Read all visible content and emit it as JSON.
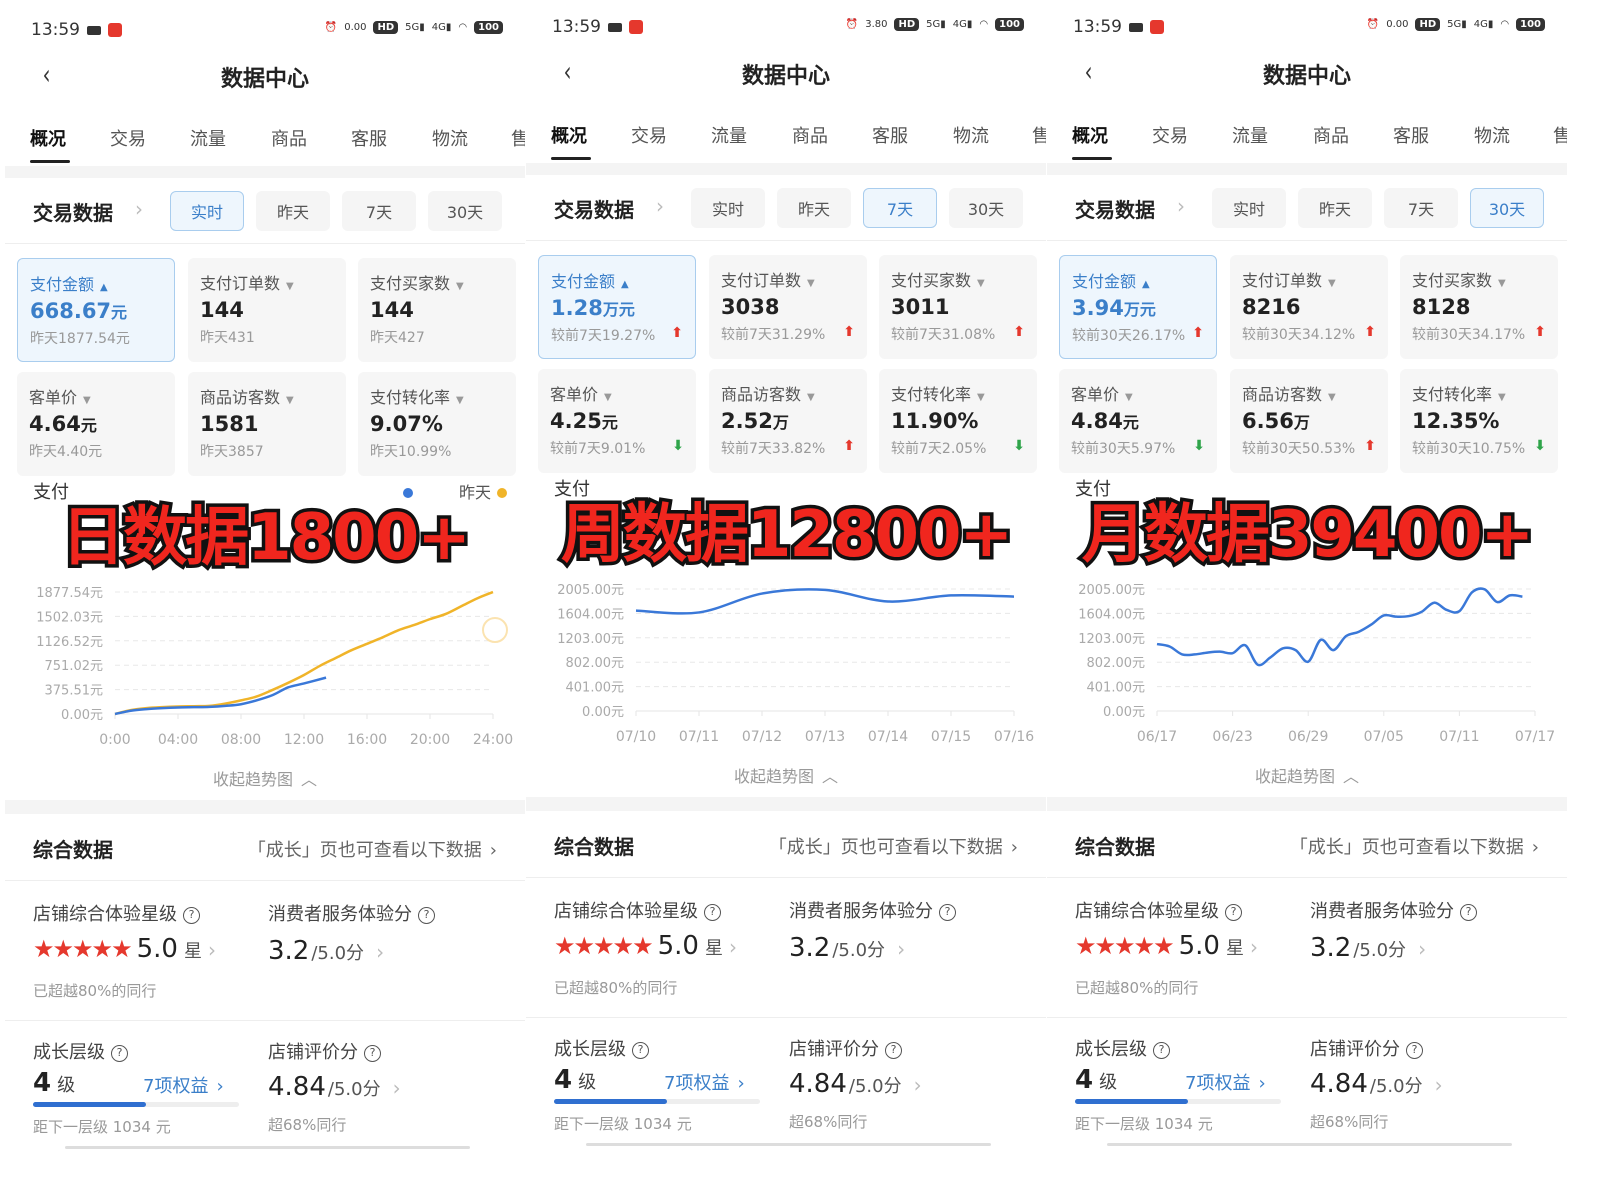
{
  "common": {
    "time": "13:59",
    "title": "数据中心",
    "tabs": [
      "概况",
      "交易",
      "流量",
      "商品",
      "客服",
      "物流",
      "售"
    ],
    "section_title": "交易数据",
    "ranges": [
      "实时",
      "昨天",
      "7天",
      "30天"
    ],
    "collapse_label": "收起趋势图",
    "composite": {
      "title": "综合数据",
      "link": "「成长」页也可查看以下数据",
      "star_label": "店铺综合体验星级",
      "star_value": "5.0",
      "star_unit": "星",
      "star_rating": 5,
      "star_sub": "已超越80%的同行",
      "service_label": "消费者服务体验分",
      "service_value": "3.2",
      "service_unit": "/5.0分",
      "level_label": "成长层级",
      "level_value": "4",
      "level_unit": "级",
      "level_link": "7项权益",
      "level_progress": 0.55,
      "level_sub": "距下一层级 1034 元",
      "review_label": "店铺评价分",
      "review_value": "4.84",
      "review_unit": "/5.0分",
      "review_sub": "超68%同行"
    },
    "colors": {
      "accent": "#3b7fc9",
      "up": "#e5382d",
      "down": "#2fa44a",
      "today": "#3a78d8",
      "yesterday": "#f0b429",
      "overlay": "#f0261e"
    }
  },
  "panels": [
    {
      "net_speed": "0.00",
      "active_range": 0,
      "overlay": "日数据1800+",
      "chart_title": "支付",
      "legend": "昨天",
      "metrics": [
        {
          "label": "支付金额",
          "value": "668.67",
          "unit": "元",
          "sub": "昨天1877.54元",
          "trend": "",
          "selected": true
        },
        {
          "label": "支付订单数",
          "value": "144",
          "unit": "",
          "sub": "昨天431",
          "trend": ""
        },
        {
          "label": "支付买家数",
          "value": "144",
          "unit": "",
          "sub": "昨天427",
          "trend": ""
        },
        {
          "label": "客单价",
          "value": "4.64",
          "unit": "元",
          "sub": "昨天4.40元",
          "trend": ""
        },
        {
          "label": "商品访客数",
          "value": "1581",
          "unit": "",
          "sub": "昨天3857",
          "trend": ""
        },
        {
          "label": "支付转化率",
          "value": "9.07%",
          "unit": "",
          "sub": "昨天10.99%",
          "trend": ""
        }
      ]
    },
    {
      "net_speed": "3.80",
      "active_range": 2,
      "overlay": "周数据12800+",
      "chart_title": "支付",
      "legend": "",
      "metrics": [
        {
          "label": "支付金额",
          "value": "1.28",
          "unit": "万元",
          "sub": "较前7天19.27%",
          "trend": "up",
          "selected": true
        },
        {
          "label": "支付订单数",
          "value": "3038",
          "unit": "",
          "sub": "较前7天31.29%",
          "trend": "up"
        },
        {
          "label": "支付买家数",
          "value": "3011",
          "unit": "",
          "sub": "较前7天31.08%",
          "trend": "up"
        },
        {
          "label": "客单价",
          "value": "4.25",
          "unit": "元",
          "sub": "较前7天9.01%",
          "trend": "down"
        },
        {
          "label": "商品访客数",
          "value": "2.52",
          "unit": "万",
          "sub": "较前7天33.82%",
          "trend": "up"
        },
        {
          "label": "支付转化率",
          "value": "11.90%",
          "unit": "",
          "sub": "较前7天2.05%",
          "trend": "down"
        }
      ]
    },
    {
      "net_speed": "0.00",
      "active_range": 3,
      "overlay": "月数据39400+",
      "chart_title": "支付",
      "legend": "",
      "metrics": [
        {
          "label": "支付金额",
          "value": "3.94",
          "unit": "万元",
          "sub": "较前30天26.17%",
          "trend": "up",
          "selected": true
        },
        {
          "label": "支付订单数",
          "value": "8216",
          "unit": "",
          "sub": "较前30天34.12%",
          "trend": "up"
        },
        {
          "label": "支付买家数",
          "value": "8128",
          "unit": "",
          "sub": "较前30天34.17%",
          "trend": "up"
        },
        {
          "label": "客单价",
          "value": "4.84",
          "unit": "元",
          "sub": "较前30天5.97%",
          "trend": "down"
        },
        {
          "label": "商品访客数",
          "value": "6.56",
          "unit": "万",
          "sub": "较前30天50.53%",
          "trend": "up"
        },
        {
          "label": "支付转化率",
          "value": "12.35%",
          "unit": "",
          "sub": "较前30天10.75%",
          "trend": "down"
        }
      ]
    }
  ],
  "chart_data": [
    {
      "type": "line",
      "grid": true,
      "yticks": [
        "0.00元",
        "375.51元",
        "751.02元",
        "1126.52元",
        "1502.03元",
        "1877.54元"
      ],
      "ylim": [
        0,
        1877.54
      ],
      "xticks": [
        "0:00",
        "04:00",
        "08:00",
        "12:00",
        "16:00",
        "20:00",
        "24:00"
      ],
      "xlim": [
        0,
        24
      ],
      "series": [
        {
          "name": "昨天",
          "color": "#f0b429",
          "x": [
            0,
            1,
            2,
            3,
            4,
            5,
            6,
            7,
            8,
            9,
            10,
            11,
            12,
            13,
            14,
            15,
            16,
            17,
            18,
            19,
            20,
            21,
            22,
            23,
            24
          ],
          "y": [
            0,
            60,
            90,
            105,
            115,
            120,
            125,
            160,
            210,
            270,
            370,
            480,
            600,
            740,
            860,
            980,
            1080,
            1180,
            1290,
            1370,
            1460,
            1540,
            1660,
            1780,
            1877
          ]
        },
        {
          "color": "#3a78d8",
          "x": [
            0,
            1,
            2,
            3,
            4,
            5,
            6,
            7,
            8,
            9,
            10,
            11,
            12,
            13.4
          ],
          "y": [
            0,
            50,
            75,
            90,
            100,
            105,
            110,
            125,
            150,
            210,
            290,
            410,
            470,
            560
          ]
        }
      ]
    },
    {
      "type": "line",
      "grid": true,
      "yticks": [
        "0.00元",
        "401.00元",
        "802.00元",
        "1203.00元",
        "1604.00元",
        "2005.00元"
      ],
      "ylim": [
        0,
        2005
      ],
      "xticks": [
        "07/10",
        "07/11",
        "07/12",
        "07/13",
        "07/14",
        "07/15",
        "07/16"
      ],
      "series": [
        {
          "color": "#3a78d8",
          "y": [
            1650,
            1620,
            1930,
            1990,
            1800,
            1900,
            1880
          ]
        }
      ]
    },
    {
      "type": "line",
      "grid": true,
      "yticks": [
        "0.00元",
        "401.00元",
        "802.00元",
        "1203.00元",
        "1604.00元",
        "2005.00元"
      ],
      "ylim": [
        0,
        2005
      ],
      "xticks": [
        "06/17",
        "06/23",
        "06/29",
        "07/05",
        "07/11",
        "07/17"
      ],
      "series": [
        {
          "color": "#3a78d8",
          "y": [
            1100,
            1060,
            930,
            930,
            960,
            975,
            950,
            1080,
            760,
            880,
            1030,
            1000,
            810,
            1170,
            1000,
            1230,
            1300,
            1420,
            1570,
            1550,
            1560,
            1630,
            1780,
            1660,
            1640,
            1950,
            2000,
            1790,
            1900,
            1880
          ]
        }
      ]
    }
  ]
}
